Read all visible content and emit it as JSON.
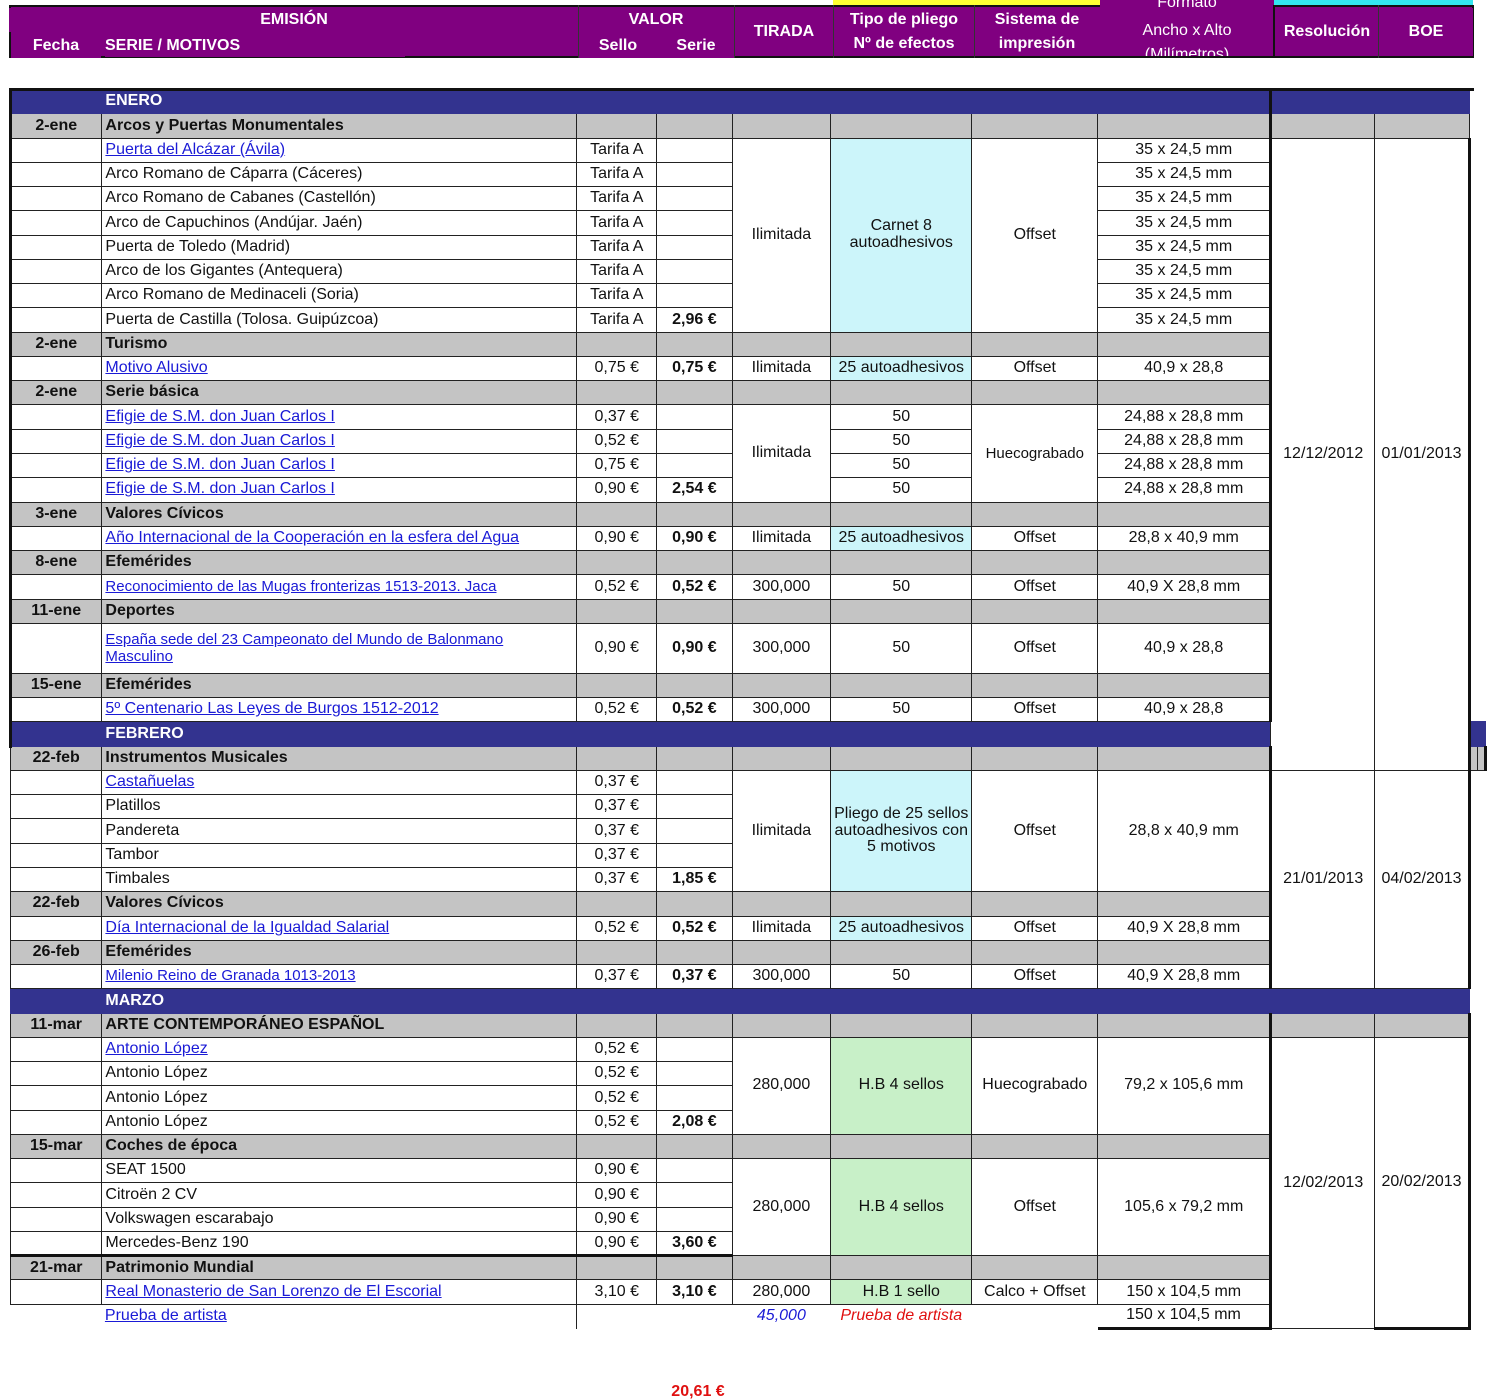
{
  "header": {
    "emision": "EMISIÓN",
    "fecha": "Fecha",
    "serie_motivos": "SERIE / MOTIVOS",
    "valor": "VALOR",
    "sello": "Sello",
    "serie": "Serie",
    "tirada": "TIRADA",
    "tipo_pliego": "Tipo de pliego",
    "n_efectos": "Nº de efectos",
    "sistema": "Sistema de",
    "impresion": "impresión",
    "formato": "Formato",
    "ancho_alto": "Ancho x Alto",
    "milimetros": "(Milímetros)",
    "resolucion": "Resolución",
    "boe": "BOE"
  },
  "months": {
    "enero": "ENERO",
    "febrero": "FEBRERO",
    "marzo": "MARZO"
  },
  "enero": {
    "arcos": {
      "fecha": "2-ene",
      "serie": "Arcos y Puertas Monumentales",
      "items": [
        "Puerta del Alcázar (Ávila)",
        "Arco Romano de Cáparra (Cáceres)",
        "Arco Romano de Cabanes (Castellón)",
        "Arco de Capuchinos (Andújar. Jaén)",
        "Puerta de Toledo (Madrid)",
        "Arco de los Gigantes (Antequera)",
        "Arco Romano de Medinaceli (Soria)",
        "Puerta de Castilla (Tolosa. Guipúzcoa)"
      ],
      "sello": "Tarifa A",
      "total": "2,96 €",
      "tirada": "Ilimitada",
      "pliego_1": "Carnet 8",
      "pliego_2": "autoadhesivos",
      "sistema": "Offset",
      "formato": "35 x 24,5 mm"
    },
    "turismo": {
      "fecha": "2-ene",
      "serie": "Turismo",
      "item": "Motivo Alusivo",
      "sello": "0,75 €",
      "total": "0,75 €",
      "tirada": "Ilimitada",
      "pliego": "25 autoadhesivos",
      "sistema": "Offset",
      "formato": "40,9 x 28,8"
    },
    "basica": {
      "fecha": "2-ene",
      "serie": "Serie básica",
      "item": "Efigie de S.M. don Juan Carlos I",
      "sellos": [
        "0,37 €",
        "0,52 €",
        "0,75 €",
        "0,90 €"
      ],
      "total": "2,54 €",
      "tirada": "Ilimitada",
      "pliego": "50",
      "sistema": "Huecograbado",
      "formato": "24,88 x 28,8 mm"
    },
    "civicos": {
      "fecha": "3-ene",
      "serie": "Valores Cívicos",
      "item": "Año Internacional de la Cooperación en la esfera del Agua",
      "sello": "0,90 €",
      "total": "0,90 €",
      "tirada": "Ilimitada",
      "pliego": "25 autoadhesivos",
      "sistema": "Offset",
      "formato": "28,8 x 40,9 mm"
    },
    "efem1": {
      "fecha": "8-ene",
      "serie": "Efemérides",
      "item": "Reconocimiento de las Mugas fronterizas 1513-2013. Jaca",
      "sello": "0,52 €",
      "total": "0,52 €",
      "tirada": "300,000",
      "pliego": "50",
      "sistema": "Offset",
      "formato": "40,9 X 28,8 mm"
    },
    "deportes": {
      "fecha": "11-ene",
      "serie": "Deportes",
      "item_1": "España sede del 23 Campeonato del Mundo de Balonmano",
      "item_2": "Masculino",
      "sello": "0,90 €",
      "total": "0,90 €",
      "tirada": "300,000",
      "pliego": "50",
      "sistema": "Offset",
      "formato": "40,9 x 28,8"
    },
    "efem2": {
      "fecha": "15-ene",
      "serie": "Efemérides",
      "item": "5º Centenario Las Leyes de Burgos 1512-2012",
      "sello": "0,52 €",
      "total": "0,52 €",
      "tirada": "300,000",
      "pliego": "50",
      "sistema": "Offset",
      "formato": "40,9 x 28,8"
    },
    "resolucion": "12/12/2012",
    "boe": "01/01/2013"
  },
  "febrero": {
    "instrumentos": {
      "fecha": "22-feb",
      "serie": "Instrumentos Musicales",
      "items": [
        "Castañuelas",
        "Platillos",
        "Pandereta",
        "Tambor",
        "Timbales"
      ],
      "sello": "0,37 €",
      "total": "1,85 €",
      "tirada": "Ilimitada",
      "pliego_1": "Pliego de 25 sellos",
      "pliego_2": "autoadhesivos con",
      "pliego_3": "5 motivos",
      "sistema": "Offset",
      "formato": "28,8 x 40,9 mm"
    },
    "civicos": {
      "fecha": "22-feb",
      "serie": "Valores Cívicos",
      "item": "Día Internacional de la Igualdad Salarial",
      "sello": "0,52 €",
      "total": "0,52 €",
      "tirada": "Ilimitada",
      "pliego": "25 autoadhesivos",
      "sistema": "Offset",
      "formato": "40,9 X 28,8 mm"
    },
    "efem": {
      "fecha": "26-feb",
      "serie": "Efemérides",
      "item": "Milenio  Reino de Granada 1013-2013",
      "sello": "0,37 €",
      "total": "0,37 €",
      "tirada": "300,000",
      "pliego": "50",
      "sistema": "Offset",
      "formato": "40,9 X 28,8 mm"
    },
    "resolucion": "21/01/2013",
    "boe": "04/02/2013"
  },
  "marzo": {
    "arte": {
      "fecha": "11-mar",
      "serie": "ARTE CONTEMPORÁNEO ESPAÑOL",
      "item": "Antonio López",
      "sello": "0,52 €",
      "total": "2,08 €",
      "tirada": "280,000",
      "pliego": "H.B 4 sellos",
      "sistema": "Huecograbado",
      "formato": "79,2 x 105,6 mm"
    },
    "coches": {
      "fecha": "15-mar",
      "serie": "Coches de época",
      "items": [
        "SEAT 1500",
        "Citroën 2 CV",
        "Volkswagen escarabajo",
        "Mercedes-Benz 190"
      ],
      "sello": "0,90 €",
      "total": "3,60 €",
      "tirada": "280,000",
      "pliego": "H.B 4 sellos",
      "sistema": "Offset",
      "formato": "105,6 x 79,2 mm"
    },
    "patrimonio": {
      "fecha": "21-mar",
      "serie": "Patrimonio Mundial",
      "item": "Real Monasterio de San Lorenzo de El Escorial",
      "sello": "3,10 €",
      "total": "3,10 €",
      "tirada": "280,000",
      "pliego": "H.B 1 sello",
      "sistema": "Calco + Offset",
      "formato": "150 x 104,5 mm"
    },
    "prueba": {
      "item": "Prueba de artista",
      "tirada": "45,000",
      "pliego": "Prueba de artista",
      "formato": "150 x 104,5 mm"
    },
    "resolucion": "12/02/2013",
    "boe": "20/02/2013"
  },
  "grand_total": "20,61 €",
  "colors": {
    "header": "#800080",
    "month_bar": "#33338f",
    "group_row": "#c4c4c4",
    "cyan_cell": "#ccf5fa",
    "green_cell": "#c8f0c8",
    "link": "#1a1ad6",
    "red": "#e01010"
  }
}
